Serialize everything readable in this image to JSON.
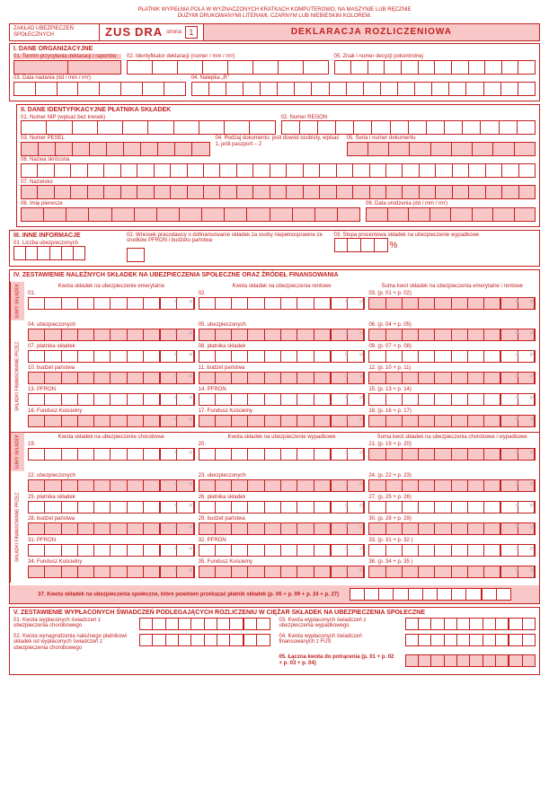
{
  "topNote1": "PŁATNIK WYPEŁNIA POLA W WYZNACZONYCH KRATKACH KOMPUTEROWO, NA MASZYNIE LUB RĘCZNIE",
  "topNote2": "DUŻYMI DRUKOWANYMI LITERAMI, CZARNYM LUB NIEBIESKIM KOLOREM.",
  "agency": "ZAKŁAD UBEZPIECZEŃ SPOŁECZNYCH",
  "zus": "ZUS",
  "dra": "DRA",
  "strona": "strona",
  "page": "1",
  "mainTitle": "DEKLARACJA ROZLICZENIOWA",
  "s1": {
    "title": "I. DANE ORGANIZACYJNE",
    "f01": "01. Termin przysyłania deklaracji i raportów",
    "f02": "02. Identyfikator deklaracji (numer / mm / rrrr)",
    "f03": "03. Data nadania (dd / mm / rrrr)",
    "f04": "04. Nalepka „R\"",
    "f05": "05. Znak i numer decyzji pokontrolnej"
  },
  "s2": {
    "title": "II. DANE IDENTYFIKACYJNE PŁATNIKA SKŁADEK",
    "side": "II. DANE IDENTYFIKACYJNE PŁATNIKA SKŁADEK",
    "f01": "01. Numer NIP (wpisać bez kresek)",
    "f02": "02. Numer REGON",
    "f03": "03. Numer PESEL",
    "f04": "04. Rodzaj dokumentu: jeśli dowód osobisty, wpisać 1, jeśli paszport – 2",
    "f05": "05. Seria i numer dokumentu",
    "f06": "06. Nazwa skrócona",
    "f07": "07. Nazwisko",
    "f08": "08. Imię pierwsze",
    "f09": "09. Data urodzenia (dd / mm / rrrr)"
  },
  "s3": {
    "title": "III. INNE INFORMACJE",
    "f01": "01. Liczba ubezpieczonych",
    "f02": "02. Wniosek pracodawcy o dofinansowanie składek za osoby niepełnosprawne ze środków PFRON i budżetu państwa",
    "f03": "03. Stopa procentowa składek na ubezpieczenie wypadkowe"
  },
  "s4": {
    "title": "IV. ZESTAWIENIE NALEŻNYCH SKŁADEK NA UBEZPIECZENIA SPOŁECZNE ORAZ ŹRÓDEŁ FINANSOWANIA",
    "tabA": "SUMY SKŁADEK",
    "tabB": "SKŁADKI FINANSOWANE PRZEZ:",
    "ha1": "Kwota składek na ubezpieczenie emerytalne",
    "ha2": "Kwota składek na ubezpieczenia rentowe",
    "ha3": "Suma kwot składek na ubezpieczenia emerytalne i rentowe",
    "r": [
      "01.",
      "02.",
      "03. (p. 01 + p. 02)",
      "04. ubezpieczonych",
      "05. ubezpieczonych",
      "06. (p. 04 + p. 05)",
      "07. płatnika składek",
      "08. płatnika składek",
      "09. (p. 07 + p. 08)",
      "10. budżet państwa",
      "11. budżet państwa",
      "12. (p. 10 + p. 11)",
      "13. PFRON",
      "14. PFRON",
      "15. (p. 13 + p. 14)",
      "16. Fundusz Kościelny",
      "17. Fundusz Kościelny",
      "18. (p. 16 + p. 17)"
    ],
    "hb1": "Kwota składek na ubezpieczenie chorobowe",
    "hb2": "Kwota składek na ubezpieczenie wypadkowe",
    "hb3": "Suma kwot składek na ubezpieczenia chorobowe i wypadkowe",
    "r2": [
      "19.",
      "20.",
      "21. (p. 19 + p. 20)",
      "22. ubezpieczonych",
      "23. ubezpieczonych",
      "24. (p. 22 + p. 23)",
      "25. płatnika składek",
      "26. płatnika składek",
      "27. (p. 25 + p. 26)",
      "28. budżet państwa",
      "29. budżet państwa",
      "30. (p. 28 + p. 29)",
      "31. PFRON",
      "32. PFRON",
      "33. (p. 31 + p. 32 )",
      "34. Fundusz Kościelny",
      "35. Fundusz Kościelny",
      "36. (p. 34 + p. 35 )"
    ],
    "l37": "37. Kwota składek na ubezpieczenia społeczne, które powinien przekazać płatnik składek (p. 06 + p. 09 + p. 24 + p. 27)"
  },
  "s5": {
    "title": "V. ZESTAWIENIE WYPŁACONYCH ŚWIADCZEŃ PODLEGAJĄCYCH ROZLICZENIU W CIĘŻAR SKŁADEK NA UBEZPIECZENIA SPOŁECZNE",
    "f01": "01. Kwota wypłaconych świadczeń z ubezpieczenia chorobowego",
    "f02": "02. Kwota wynagrodzenia należnego płatnikowi składek od wypłaconych świadczeń z ubezpieczenia chorobowego",
    "f03": "03. Kwota wypłaconych świadczeń z ubezpieczenia wypadkowego",
    "f04": "04. Kwota wypłaconych świadczeń finansowanych z FUS",
    "f05": "05. Łączna kwota do potrącenia (p. 01 + p. 02 + p. 03 + p. 04)"
  },
  "zl": "zł",
  "gr": "gr"
}
